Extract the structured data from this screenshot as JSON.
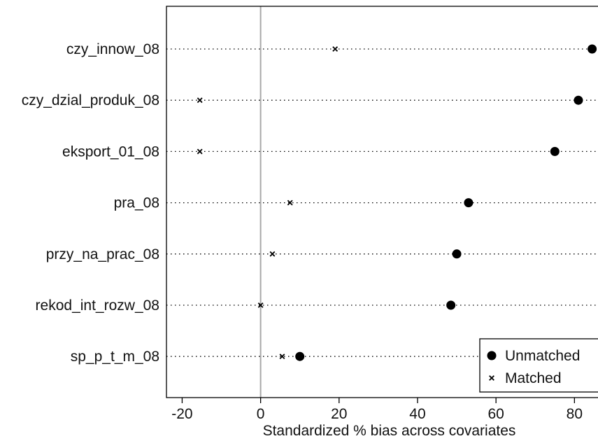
{
  "chart_data": {
    "type": "scatter",
    "title": "",
    "xlabel": "Standardized % bias across covariates",
    "ylabel": "",
    "xlim": [
      -24,
      86
    ],
    "xticks": [
      -20,
      0,
      20,
      40,
      60,
      80
    ],
    "reference_line_x": 0,
    "grid": false,
    "legend_position": "bottom-right",
    "categories": [
      "czy_innow_08",
      "czy_dzial_produk_08",
      "eksport_01_08",
      "pra_08",
      "przy_na_prac_08",
      "rekod_int_rozw_08",
      "sp_p_t_m_08"
    ],
    "series": [
      {
        "name": "Unmatched",
        "marker": "filled-circle",
        "values": [
          84.5,
          81.0,
          75.0,
          53.0,
          50.0,
          48.5,
          10.0
        ]
      },
      {
        "name": "Matched",
        "marker": "x",
        "values": [
          19.0,
          -15.5,
          -15.5,
          7.5,
          3.0,
          0.0,
          5.5
        ]
      }
    ],
    "colors": {
      "marker": "#000000",
      "reference_line": "#a8a8a8",
      "dotted_line": "#000000"
    }
  }
}
